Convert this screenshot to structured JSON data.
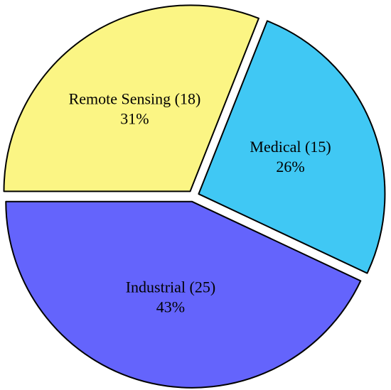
{
  "chart_data": {
    "type": "pie",
    "categories": [
      "Remote Sensing (18)",
      "Medical (15)",
      "Industrial (25)"
    ],
    "values": [
      31,
      26,
      43
    ],
    "value_labels": [
      "31%",
      "26%",
      "43%"
    ],
    "colors": [
      "#fbf584",
      "#40c8f4",
      "#6464fc"
    ],
    "exploded": true
  }
}
